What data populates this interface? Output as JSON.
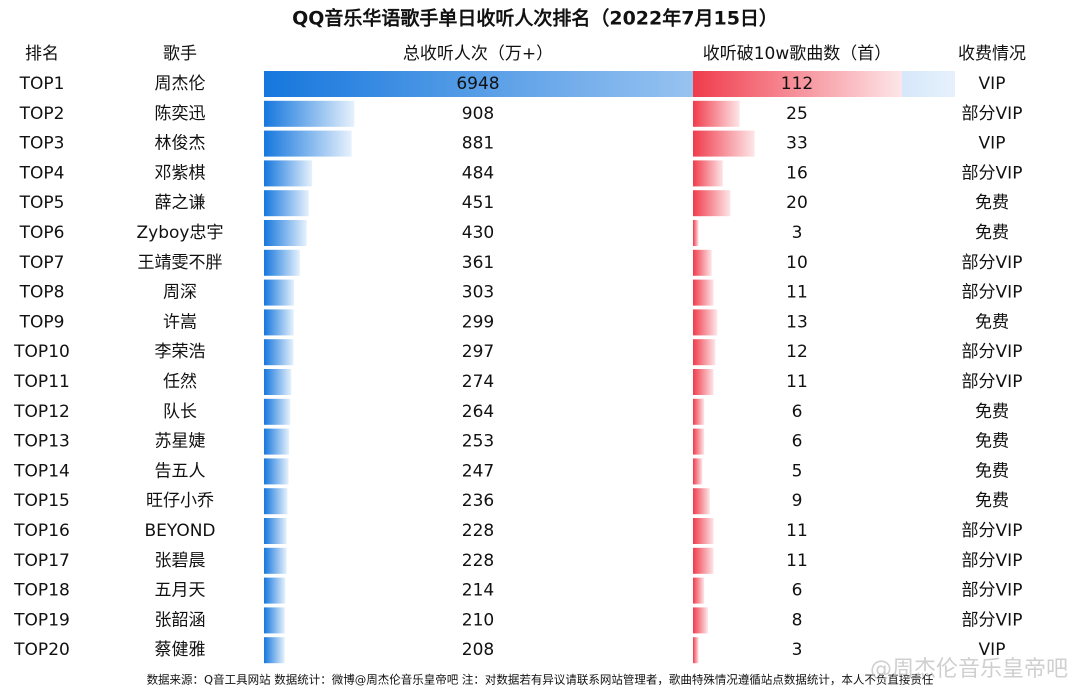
{
  "title": "QQ音乐华语歌手单日收听人次排名（2022年7月15日）",
  "headers": [
    "排名",
    "歌手",
    "总收听人次（万+）",
    "收听破10w歌曲数（首）",
    "收费情况"
  ],
  "rows": [
    [
      "TOP1",
      "周杰伦",
      6948,
      112,
      "VIP"
    ],
    [
      "TOP2",
      "陈奕迅",
      908,
      25,
      "部分VIP"
    ],
    [
      "TOP3",
      "林俊杰",
      881,
      33,
      "VIP"
    ],
    [
      "TOP4",
      "邓紫棋",
      484,
      16,
      "部分VIP"
    ],
    [
      "TOP5",
      "薛之谦",
      451,
      20,
      "免费"
    ],
    [
      "TOP6",
      "Zyboy忠宇",
      430,
      3,
      "免费"
    ],
    [
      "TOP7",
      "王靖雯不胖",
      361,
      10,
      "部分VIP"
    ],
    [
      "TOP8",
      "周深",
      303,
      11,
      "部分VIP"
    ],
    [
      "TOP9",
      "许嵩",
      299,
      13,
      "免费"
    ],
    [
      "TOP10",
      "李荣浩",
      297,
      12,
      "部分VIP"
    ],
    [
      "TOP11",
      "任然",
      274,
      11,
      "部分VIP"
    ],
    [
      "TOP12",
      "队长",
      264,
      6,
      "免费"
    ],
    [
      "TOP13",
      "苏星婕",
      253,
      6,
      "免费"
    ],
    [
      "TOP14",
      "告五人",
      247,
      5,
      "免费"
    ],
    [
      "TOP15",
      "旺仔小乔",
      236,
      9,
      "免费"
    ],
    [
      "TOP16",
      "BEYOND",
      228,
      11,
      "部分VIP"
    ],
    [
      "TOP17",
      "张碧晨",
      228,
      11,
      "部分VIP"
    ],
    [
      "TOP18",
      "五月天",
      214,
      6,
      "部分VIP"
    ],
    [
      "TOP19",
      "张韶涵",
      210,
      8,
      "部分VIP"
    ],
    [
      "TOP20",
      "蔡健雅",
      208,
      3,
      "VIP"
    ]
  ],
  "footer": "数据来源：Q音工具网站 数据统计：微博@周杰伦音乐皇帝吧  注：对数据若有异议请联系网站管理者，歌曲特殊情况遵循站点数据统计，本人不负直接责任",
  "watermark": "@周杰伦音乐皇帝吧"
}
